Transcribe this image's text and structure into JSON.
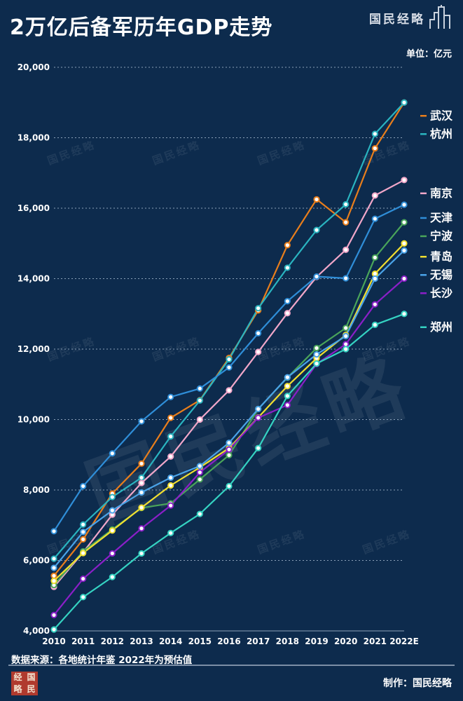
{
  "header": {
    "title": "2万亿后备军历年GDP走势",
    "brand": "国民经略"
  },
  "unit_label": "单位：亿元",
  "footer": {
    "source": "数据来源：各地统计年鉴  2022年为预估值",
    "credit": "制作：国民经略",
    "logo_chars": [
      "经",
      "国",
      "略",
      "民"
    ]
  },
  "watermark_text": "国民经略",
  "colors": {
    "background": "#0d2b4d",
    "grid": "#8aa0b8"
  },
  "chart_data": {
    "type": "line",
    "categories": [
      "2010",
      "2011",
      "2012",
      "2013",
      "2014",
      "2015",
      "2016",
      "2017",
      "2018",
      "2019",
      "2020",
      "2021",
      "2022E"
    ],
    "ylim": [
      4000,
      20000
    ],
    "yticks": [
      4000,
      6000,
      8000,
      10000,
      12000,
      14000,
      16000,
      18000,
      20000
    ],
    "ytick_labels": [
      "4,000",
      "6,000",
      "8,000",
      "10,000",
      "12,000",
      "14,000",
      "16,000",
      "18,000",
      "20,000"
    ],
    "grid": "horizontal dotted",
    "legend_position": "right, next to line ends",
    "series": [
      {
        "name": "武汉",
        "color": "#e87e1c",
        "values": [
          5566,
          6600,
          7900,
          8750,
          10050,
          10550,
          11750,
          13100,
          14950,
          16250,
          15600,
          17700,
          19000
        ]
      },
      {
        "name": "杭州",
        "color": "#2ab4c0",
        "values": [
          6050,
          7020,
          7800,
          8350,
          9520,
          10540,
          11710,
          13160,
          14310,
          15380,
          16110,
          18110,
          19000
        ]
      },
      {
        "name": "南京",
        "color": "#f1a7c9",
        "values": [
          5250,
          6230,
          7300,
          8200,
          8950,
          10000,
          10830,
          11920,
          13020,
          14050,
          14820,
          16360,
          16800
        ]
      },
      {
        "name": "天津",
        "color": "#2f8ed8",
        "values": [
          6830,
          8110,
          9040,
          9950,
          10640,
          10880,
          11480,
          12450,
          13360,
          14060,
          14010,
          15700,
          16100
        ]
      },
      {
        "name": "宁波",
        "color": "#4aa55a",
        "values": [
          5300,
          6260,
          6880,
          7490,
          7620,
          8300,
          8990,
          10300,
          11190,
          12030,
          12600,
          14600,
          15600
        ]
      },
      {
        "name": "青岛",
        "color": "#f0de30",
        "values": [
          5420,
          6210,
          6850,
          7500,
          8130,
          8640,
          9190,
          10060,
          10950,
          11740,
          12400,
          14140,
          15000
        ]
      },
      {
        "name": "无锡",
        "color": "#4aa3e8",
        "values": [
          5790,
          6810,
          7420,
          7930,
          8350,
          8680,
          9340,
          10300,
          11200,
          11850,
          12370,
          14000,
          14800
        ]
      },
      {
        "name": "长沙",
        "color": "#8b1fc8",
        "values": [
          4450,
          5480,
          6200,
          6910,
          7560,
          8500,
          9150,
          10050,
          10410,
          11580,
          12140,
          13270,
          14000
        ]
      },
      {
        "name": "郑州",
        "color": "#35d3c2",
        "values": [
          4040,
          4960,
          5530,
          6200,
          6780,
          7320,
          8110,
          9190,
          10670,
          11590,
          12000,
          12690,
          13000
        ]
      }
    ]
  }
}
